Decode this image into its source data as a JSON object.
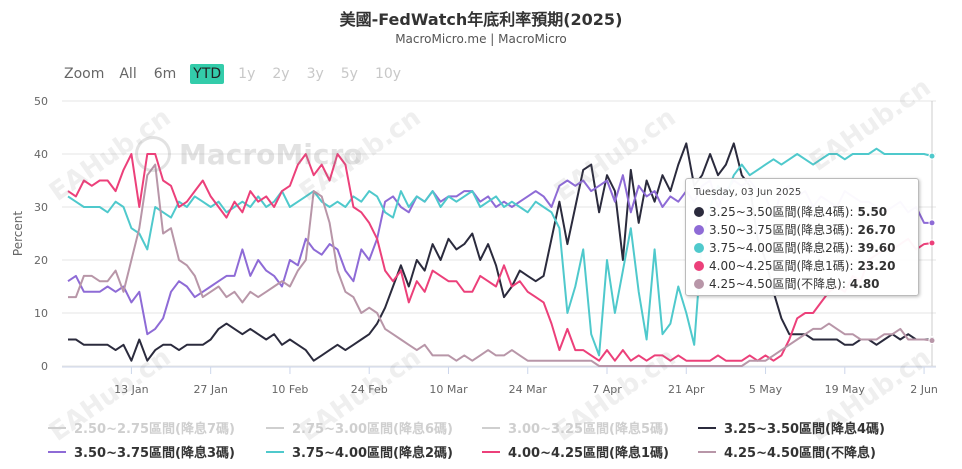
{
  "header": {
    "title": "美國-FedWatch年底利率預期(2025)",
    "subtitle": "MacroMicro.me | MacroMicro"
  },
  "range_selector": {
    "zoom_label": "Zoom",
    "buttons": [
      {
        "label": "All",
        "state": "normal"
      },
      {
        "label": "6m",
        "state": "normal"
      },
      {
        "label": "YTD",
        "state": "active"
      },
      {
        "label": "1y",
        "state": "disabled"
      },
      {
        "label": "2y",
        "state": "disabled"
      },
      {
        "label": "3y",
        "state": "disabled"
      },
      {
        "label": "5y",
        "state": "disabled"
      },
      {
        "label": "10y",
        "state": "disabled"
      }
    ]
  },
  "watermark": {
    "logo_text": "MacroMicro",
    "site_marks": [
      "EAHub.cn",
      "EAHub.cn",
      "EAHub.cn",
      "EAHub.cn",
      "EAHub.cn",
      "EAHub.cn",
      "EAHub.cn",
      "EAHub.cn"
    ]
  },
  "tooltip": {
    "date": "Tuesday, 03 Jun 2025",
    "rows": [
      {
        "label": "3.25~3.50區間(降息4碼):",
        "value": "5.50",
        "color": "#2b2b3d"
      },
      {
        "label": "3.50~3.75區間(降息3碼):",
        "value": "26.70",
        "color": "#8e6bd6"
      },
      {
        "label": "3.75~4.00區間(降息2碼):",
        "value": "39.60",
        "color": "#4fc9cc"
      },
      {
        "label": "4.00~4.25區間(降息1碼):",
        "value": "23.20",
        "color": "#ec407a"
      },
      {
        "label": "4.25~4.50區間(不降息):",
        "value": "4.80",
        "color": "#b896a8"
      }
    ]
  },
  "legend": [
    {
      "label": "2.50~2.75區間(降息7碼)",
      "color": "#cfcfcf",
      "visible": false
    },
    {
      "label": "2.75~3.00區間(降息6碼)",
      "color": "#cfcfcf",
      "visible": false
    },
    {
      "label": "3.00~3.25區間(降息5碼)",
      "color": "#cfcfcf",
      "visible": false
    },
    {
      "label": "3.25~3.50區間(降息4碼)",
      "color": "#2b2b3d",
      "visible": true
    },
    {
      "label": "3.50~3.75區間(降息3碼)",
      "color": "#8e6bd6",
      "visible": true
    },
    {
      "label": "3.75~4.00區間(降息2碼)",
      "color": "#4fc9cc",
      "visible": true
    },
    {
      "label": "4.00~4.25區間(降息1碼)",
      "color": "#ec407a",
      "visible": true
    },
    {
      "label": "4.25~4.50區間(不降息)",
      "color": "#b896a8",
      "visible": true
    }
  ],
  "chart_data": {
    "type": "line",
    "ylabel": "Percent",
    "ylim": [
      0,
      50
    ],
    "yticks": [
      0,
      10,
      20,
      30,
      40,
      50
    ],
    "xticks": [
      "13 Jan",
      "27 Jan",
      "10 Feb",
      "24 Feb",
      "10 Mar",
      "24 Mar",
      "7 Apr",
      "21 Apr",
      "5 May",
      "19 May",
      "2 Jun"
    ],
    "xtick_index": [
      8,
      18,
      28,
      38,
      48,
      58,
      68,
      78,
      88,
      98,
      108
    ],
    "grid": true,
    "x_note": "x = trading-day index from 2 Jan 2025 (index 0) to 4 Jun 2025 (index 109)",
    "series": [
      {
        "name": "3.25~3.50區間(降息4碼)",
        "color": "#2b2b3d",
        "values": [
          5,
          5,
          4,
          4,
          4,
          4,
          3,
          4,
          1,
          5,
          1,
          3,
          4,
          4,
          3,
          4,
          4,
          4,
          5,
          7,
          8,
          7,
          6,
          7,
          6,
          5,
          6,
          4,
          5,
          4,
          3,
          1,
          2,
          3,
          4,
          3,
          4,
          5,
          6,
          8,
          11,
          15,
          19,
          15,
          20,
          18,
          23,
          20,
          24,
          22,
          23,
          25,
          20,
          23,
          19,
          13,
          15,
          18,
          17,
          16,
          17,
          24,
          31,
          23,
          30,
          37,
          38,
          29,
          36,
          33,
          20,
          37,
          27,
          35,
          31,
          36,
          33,
          38,
          42,
          34,
          36,
          40,
          36,
          38,
          42,
          36,
          34,
          24,
          20,
          14,
          9,
          6,
          6,
          6,
          5,
          5,
          5,
          5,
          4,
          4,
          5,
          5,
          4,
          5,
          6,
          5,
          6,
          5,
          5,
          5
        ]
      },
      {
        "name": "3.50~3.75區間(降息3碼)",
        "color": "#8e6bd6",
        "values": [
          16,
          17,
          14,
          14,
          14,
          15,
          14,
          15,
          12,
          14,
          6,
          7,
          9,
          14,
          16,
          15,
          13,
          14,
          15,
          16,
          17,
          17,
          22,
          17,
          20,
          18,
          17,
          15,
          20,
          19,
          24,
          22,
          21,
          23,
          22,
          18,
          16,
          22,
          20,
          24,
          31,
          32,
          30,
          29,
          32,
          31,
          33,
          31,
          32,
          32,
          33,
          33,
          31,
          32,
          30,
          31,
          30,
          31,
          32,
          33,
          32,
          30,
          34,
          35,
          34,
          35,
          33,
          34,
          35,
          31,
          36,
          29,
          34,
          32,
          33,
          30,
          32,
          31,
          33,
          31,
          34,
          35,
          30,
          33,
          35,
          34,
          35,
          33,
          32,
          28,
          33,
          34,
          32,
          33,
          30,
          32,
          31,
          30,
          33,
          32,
          31,
          31,
          30,
          29,
          30,
          31,
          29,
          30,
          27,
          27
        ]
      },
      {
        "name": "3.75~4.00區間(降息2碼)",
        "color": "#4fc9cc",
        "values": [
          32,
          31,
          30,
          30,
          30,
          29,
          31,
          30,
          26,
          25,
          22,
          30,
          29,
          28,
          31,
          30,
          32,
          31,
          30,
          31,
          29,
          30,
          31,
          30,
          32,
          30,
          31,
          33,
          30,
          31,
          32,
          33,
          31,
          30,
          31,
          30,
          32,
          31,
          33,
          32,
          29,
          28,
          33,
          30,
          32,
          31,
          33,
          30,
          32,
          31,
          32,
          33,
          30,
          31,
          32,
          30,
          31,
          30,
          29,
          31,
          30,
          29,
          26,
          10,
          15,
          22,
          6,
          2,
          20,
          10,
          18,
          26,
          14,
          5,
          22,
          6,
          8,
          15,
          10,
          4,
          24,
          30,
          34,
          32,
          36,
          38,
          36,
          37,
          38,
          39,
          38,
          39,
          40,
          39,
          38,
          39,
          40,
          40,
          39,
          40,
          40,
          40,
          41,
          40,
          40,
          40,
          40,
          40,
          40,
          39.6
        ]
      },
      {
        "name": "4.00~4.25區間(降息1碼)",
        "color": "#ec407a",
        "values": [
          33,
          32,
          35,
          34,
          35,
          35,
          33,
          37,
          40,
          30,
          40,
          40,
          35,
          34,
          30,
          31,
          33,
          35,
          32,
          30,
          28,
          31,
          29,
          33,
          31,
          32,
          30,
          33,
          34,
          38,
          40,
          36,
          38,
          35,
          40,
          38,
          30,
          29,
          27,
          24,
          18,
          16,
          18,
          12,
          16,
          14,
          18,
          17,
          16,
          16,
          14,
          14,
          17,
          16,
          15,
          19,
          15,
          16,
          14,
          13,
          12,
          8,
          3,
          7,
          3,
          3,
          2,
          1,
          3,
          1,
          3,
          1,
          2,
          1,
          2,
          2,
          1,
          2,
          1,
          1,
          1,
          1,
          2,
          1,
          1,
          1,
          2,
          1,
          2,
          1,
          2,
          5,
          9,
          10,
          10,
          12,
          14,
          15,
          14,
          17,
          16,
          20,
          21,
          22,
          22,
          23,
          24,
          22,
          23,
          23.2
        ]
      },
      {
        "name": "4.25~4.50區間(不降息)",
        "color": "#b896a8",
        "values": [
          13,
          13,
          17,
          17,
          16,
          16,
          18,
          14,
          20,
          26,
          36,
          38,
          25,
          26,
          20,
          19,
          17,
          13,
          14,
          15,
          13,
          14,
          12,
          14,
          13,
          14,
          15,
          16,
          15,
          18,
          20,
          33,
          32,
          27,
          18,
          14,
          13,
          10,
          11,
          10,
          7,
          6,
          5,
          4,
          3,
          4,
          2,
          2,
          2,
          1,
          2,
          1,
          2,
          3,
          2,
          2,
          3,
          2,
          1,
          1,
          1,
          1,
          1,
          1,
          1,
          1,
          1,
          0,
          0,
          0,
          0,
          0,
          0,
          0,
          0,
          0,
          0,
          0,
          0,
          0,
          0,
          0,
          0,
          0,
          0,
          0,
          1,
          1,
          1,
          2,
          3,
          4,
          5,
          6,
          7,
          7,
          8,
          7,
          6,
          6,
          5,
          5,
          5,
          6,
          6,
          7,
          5,
          5,
          5,
          4.8
        ]
      }
    ]
  }
}
